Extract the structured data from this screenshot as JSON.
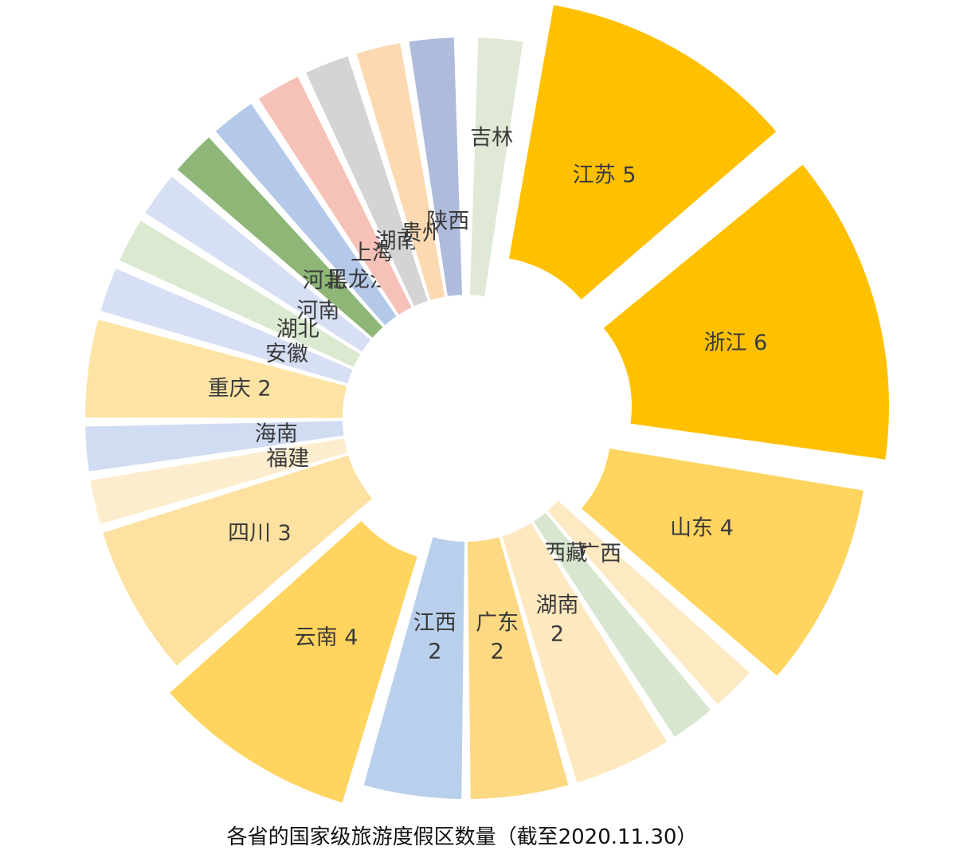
{
  "caption": "各省的国家级旅游度假区数量（截至2020.11.30）",
  "chart_data": {
    "type": "pie",
    "title": "各省的国家级旅游度假区数量（截至2020.11.30）",
    "slices": [
      {
        "name": "吉林",
        "value": 1,
        "label": "吉林",
        "color": "#dfe9d6"
      },
      {
        "name": "江苏",
        "value": 5,
        "label": "江苏 5",
        "color": "#ffc000"
      },
      {
        "name": "浙江",
        "value": 6,
        "label": "浙江 6",
        "color": "#ffc000"
      },
      {
        "name": "山东",
        "value": 4,
        "label": "山东 4",
        "color": "#ffd45f"
      },
      {
        "name": "广西",
        "value": 1,
        "label": "广西",
        "color": "#fde9c2"
      },
      {
        "name": "西藏",
        "value": 1,
        "label": "西藏",
        "color": "#d8e6cf"
      },
      {
        "name": "湖南",
        "value": 2,
        "label": "湖南\n2",
        "color": "#fde8c0"
      },
      {
        "name": "广东",
        "value": 2,
        "label": "广东\n2",
        "color": "#fed983"
      },
      {
        "name": "江西",
        "value": 2,
        "label": "江西\n2",
        "color": "#b9d0ec"
      },
      {
        "name": "云南",
        "value": 4,
        "label": "云南 4",
        "color": "#ffd45f"
      },
      {
        "name": "四川",
        "value": 3,
        "label": "四川 3",
        "color": "#fde1a0"
      },
      {
        "name": "福建",
        "value": 1,
        "label": "福建",
        "color": "#fdedcf"
      },
      {
        "name": "海南",
        "value": 1,
        "label": "海南",
        "color": "#d0dcf2"
      },
      {
        "name": "重庆",
        "value": 2,
        "label": "重庆  2",
        "color": "#fde4a4"
      },
      {
        "name": "安徽",
        "value": 1,
        "label": "安徽",
        "color": "#d6dff4"
      },
      {
        "name": "湖北",
        "value": 1,
        "label": "湖北",
        "color": "#dce9d1"
      },
      {
        "name": "河南",
        "value": 1,
        "label": "河南",
        "color": "#d6dff4"
      },
      {
        "name": "河北",
        "value": 1,
        "label": "河北",
        "color": "#8db677"
      },
      {
        "name": "黑龙江",
        "value": 1,
        "label": "黑龙江",
        "color": "#b4c9ea"
      },
      {
        "name": "上海",
        "value": 1,
        "label": "上海",
        "color": "#f6c1b7"
      },
      {
        "name": "湖南",
        "value": 1,
        "label": "湖南",
        "color": "#d4d4d4"
      },
      {
        "name": "贵州",
        "value": 1,
        "label": "贵州",
        "color": "#fcd9b0"
      },
      {
        "name": "陕西",
        "value": 1,
        "label": "陕西",
        "color": "#aebbdc"
      }
    ]
  }
}
